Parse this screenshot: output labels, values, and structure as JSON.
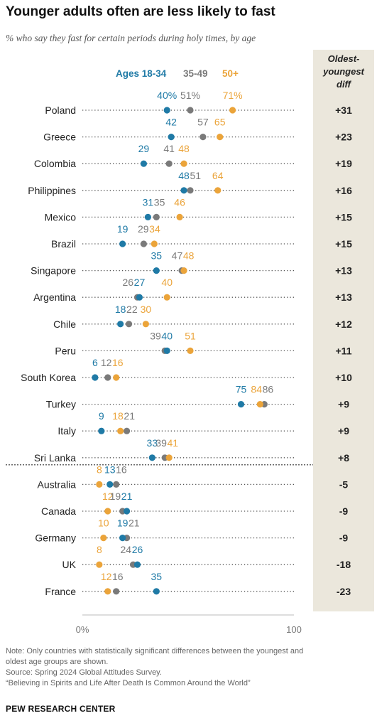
{
  "title": "Younger adults often are less likely to fast",
  "subtitle": "% who say they fast for certain periods during holy times, by age",
  "diff_header": [
    "Oldest-",
    "youngest",
    "diff"
  ],
  "legend": [
    {
      "label": "Ages 18-34",
      "color": "#1f7aa6"
    },
    {
      "label": "35-49",
      "color": "#7a7a7a"
    },
    {
      "label": "50+",
      "color": "#eba43a"
    }
  ],
  "chart_data": {
    "type": "dot",
    "series": [
      {
        "name": "Ages 18-34",
        "color": "#1f7aa6"
      },
      {
        "name": "35-49",
        "color": "#7a7a7a"
      },
      {
        "name": "50+",
        "color": "#eba43a"
      }
    ],
    "xlim": [
      0,
      100
    ],
    "xticks": [
      "0%",
      "100"
    ],
    "rows": [
      {
        "country": "Poland",
        "values": [
          40,
          51,
          71
        ],
        "labels": [
          "40%",
          "51%",
          "71%"
        ],
        "diff": "+31"
      },
      {
        "country": "Greece",
        "values": [
          42,
          57,
          65
        ],
        "labels": [
          "42",
          "57",
          "65"
        ],
        "diff": "+23"
      },
      {
        "country": "Colombia",
        "values": [
          29,
          41,
          48
        ],
        "labels": [
          "29",
          "41",
          "48"
        ],
        "diff": "+19"
      },
      {
        "country": "Philippines",
        "values": [
          48,
          51,
          64
        ],
        "labels": [
          "48",
          "51",
          "64"
        ],
        "diff": "+16"
      },
      {
        "country": "Mexico",
        "values": [
          31,
          35,
          46
        ],
        "labels": [
          "31",
          "35",
          "46"
        ],
        "diff": "+15"
      },
      {
        "country": "Brazil",
        "values": [
          19,
          29,
          34
        ],
        "labels": [
          "19",
          "29",
          "34"
        ],
        "diff": "+15"
      },
      {
        "country": "Singapore",
        "values": [
          35,
          47,
          48
        ],
        "labels": [
          "35",
          "47",
          "48"
        ],
        "diff": "+13"
      },
      {
        "country": "Argentina",
        "values": [
          27,
          26,
          40
        ],
        "labels": [
          "27",
          "26",
          "40"
        ],
        "diff": "+13"
      },
      {
        "country": "Chile",
        "values": [
          18,
          22,
          30
        ],
        "labels": [
          "18",
          "22",
          "30"
        ],
        "diff": "+12"
      },
      {
        "country": "Peru",
        "values": [
          40,
          39,
          51
        ],
        "labels": [
          "40",
          "39",
          "51"
        ],
        "diff": "+11"
      },
      {
        "country": "South Korea",
        "values": [
          6,
          12,
          16
        ],
        "labels": [
          "6",
          "12",
          "16"
        ],
        "diff": "+10"
      },
      {
        "country": "Turkey",
        "values": [
          75,
          86,
          84
        ],
        "labels": [
          "75",
          "86",
          "84"
        ],
        "diff": "+9"
      },
      {
        "country": "Italy",
        "values": [
          9,
          21,
          18
        ],
        "labels": [
          "9",
          "21",
          "18"
        ],
        "diff": "+9"
      },
      {
        "country": "Sri Lanka",
        "values": [
          33,
          39,
          41
        ],
        "labels": [
          "33",
          "39",
          "41"
        ],
        "diff": "+8"
      },
      {
        "country": "Australia",
        "values": [
          13,
          16,
          8
        ],
        "labels": [
          "13",
          "16",
          "8"
        ],
        "diff": "-5"
      },
      {
        "country": "Canada",
        "values": [
          21,
          19,
          12
        ],
        "labels": [
          "21",
          "19",
          "12"
        ],
        "diff": "-9"
      },
      {
        "country": "Germany",
        "values": [
          19,
          21,
          10
        ],
        "labels": [
          "19",
          "21",
          "10"
        ],
        "diff": "-9"
      },
      {
        "country": "UK",
        "values": [
          26,
          24,
          8
        ],
        "labels": [
          "26",
          "24",
          "8"
        ],
        "diff": "-18"
      },
      {
        "country": "France",
        "values": [
          35,
          16,
          12
        ],
        "labels": [
          "35",
          "16",
          "12"
        ],
        "diff": "-23"
      }
    ]
  },
  "notes": [
    "Note: Only countries with statistically significant differences between the youngest and",
    "oldest age groups are shown.",
    "Source: Spring 2024 Global Attitudes Survey.",
    "“Believing in Spirits and Life After Death Is Common Around the World”"
  ],
  "logo": "PEW RESEARCH CENTER"
}
